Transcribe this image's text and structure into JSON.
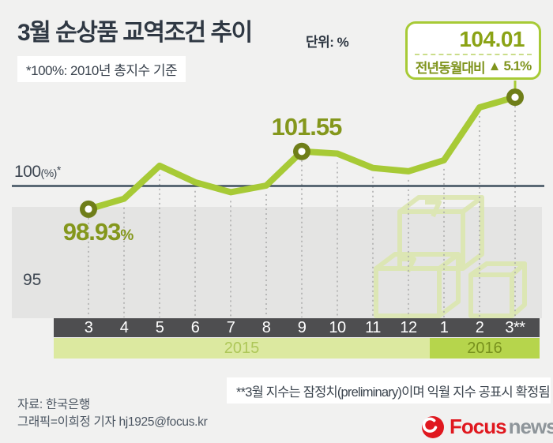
{
  "header": {
    "title": "3월 순상품 교역조건 추이",
    "unit_label": "단위: %",
    "note": "*100%: 2010년 총지수 기준"
  },
  "callout": {
    "value": "104.01",
    "delta_label": "전년동월대비",
    "delta_arrow": "▲",
    "delta_value": "5.1%"
  },
  "chart_data": {
    "type": "line",
    "title": "3월 순상품 교역조건 추이",
    "unit": "%",
    "x": [
      "3",
      "4",
      "5",
      "6",
      "7",
      "8",
      "9",
      "10",
      "11",
      "12",
      "1",
      "2",
      "3**"
    ],
    "values": [
      98.93,
      99.4,
      100.9,
      100.15,
      99.7,
      100.0,
      101.55,
      101.45,
      100.8,
      100.65,
      101.15,
      103.55,
      104.01
    ],
    "marker_indices": [
      0,
      6,
      12
    ],
    "labeled_points": [
      {
        "month": "3",
        "year": "2015",
        "value": 98.93,
        "text_main": "98.93",
        "text_suffix": "%"
      },
      {
        "month": "9",
        "year": "2015",
        "value": 101.55,
        "text_main": "101.55",
        "text_suffix": ""
      },
      {
        "month": "3**",
        "year": "2016",
        "value": 104.01,
        "text_main": "104.01",
        "text_suffix": ""
      }
    ],
    "baseline": {
      "value": 100,
      "label_main": "100",
      "label_paren": "(%)",
      "label_star": "*"
    },
    "y_label_95": "95",
    "year_bands": [
      {
        "label": "2015",
        "from_month": "3",
        "to_month": "12"
      },
      {
        "label": "2016",
        "from_month": "1",
        "to_month": "3**"
      }
    ],
    "ylim": [
      94,
      105.5
    ],
    "grid": "vertical-dashed",
    "legend_position": "none"
  },
  "footnote": "**3월 지수는 잠정치(preliminary)이며 익월 지수 공표시 확정됨",
  "source": "자료: 한국은행",
  "credit": "그래픽=이희정 기자 hj1925@focus.kr",
  "logo": {
    "brand": "Focus",
    "suffix": "news"
  },
  "colors": {
    "background": "#f1f1f0",
    "band": "#e4e4e3",
    "line": "#a7ca36",
    "marker_ring": "#6f7e19",
    "olive_text": "#84971c",
    "baseline": "#3e4f5e",
    "axis_bar": "#4e4e50",
    "band_2015": "#dce9a0",
    "band_2016": "#b6d54c",
    "grid": "#a9a9a9",
    "logo_red": "#e0181f",
    "logo_gray": "#8e959a",
    "watermark": "#dce7b0"
  }
}
